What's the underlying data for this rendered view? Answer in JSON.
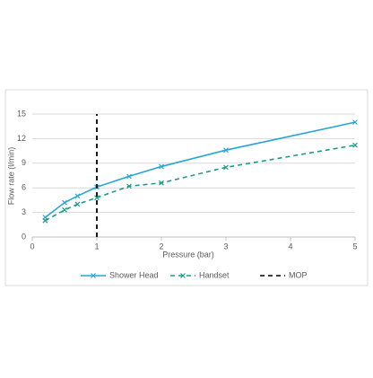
{
  "chart_data": {
    "type": "line",
    "x_label": "Pressure (bar)",
    "y_label": "Flow rate (l/min)",
    "xlim": [
      0,
      5
    ],
    "xticks": [
      0,
      1,
      2,
      3,
      4,
      5
    ],
    "ylim": [
      0,
      15
    ],
    "yticks": [
      0,
      3,
      6,
      9,
      12,
      15
    ],
    "grid": true,
    "legend": "bottom",
    "series": [
      {
        "name": "Shower Head",
        "color": "#2aa6d6",
        "dash": "solid",
        "marker": "x",
        "x": [
          0.2,
          0.5,
          0.7,
          1.0,
          1.5,
          2.0,
          3.0,
          5.0
        ],
        "values": [
          2.4,
          4.2,
          5.0,
          6.1,
          7.4,
          8.6,
          10.6,
          14.0
        ]
      },
      {
        "name": "Handset",
        "color": "#1b9a8e",
        "dash": "dashed",
        "marker": "x",
        "x": [
          0.2,
          0.5,
          0.7,
          1.0,
          1.5,
          2.0,
          3.0,
          5.0
        ],
        "values": [
          2.0,
          3.3,
          4.0,
          4.8,
          6.2,
          6.6,
          8.5,
          11.2
        ]
      },
      {
        "name": "MOP",
        "color": "#000000",
        "dash": "dashed",
        "marker": "none",
        "x": [
          1,
          1
        ],
        "values": [
          0,
          15
        ]
      }
    ]
  }
}
